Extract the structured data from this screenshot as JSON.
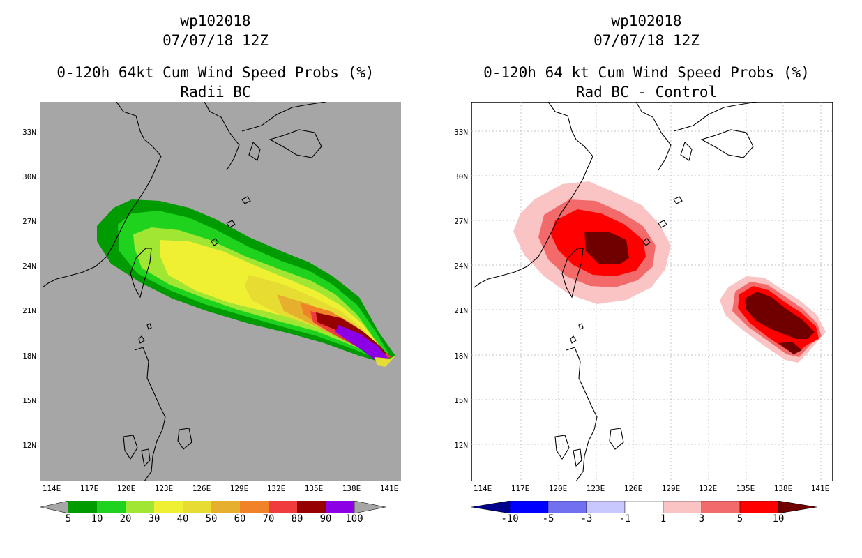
{
  "left": {
    "title_line1": "wp102018",
    "title_line2": "07/07/18 12Z",
    "title_line3": "0-120h 64kt Cum Wind Speed Probs (%)",
    "title_line4": "Radii BC",
    "background_color": "#a6a6a6",
    "colorbar": {
      "labels": [
        "5",
        "10",
        "20",
        "30",
        "40",
        "50",
        "60",
        "70",
        "80",
        "90",
        "100"
      ],
      "colors": [
        "#009b00",
        "#1ed21e",
        "#a0e632",
        "#f0f032",
        "#e6dc32",
        "#e6af2d",
        "#f08228",
        "#f03c3c",
        "#960000",
        "#8c00e6"
      ]
    }
  },
  "right": {
    "title_line1": "wp102018",
    "title_line2": "07/07/18 12Z",
    "title_line3": "0-120h 64 kt Cum Wind Speed Probs (%)",
    "title_line4": "Rad BC - Control",
    "background_color": "#ffffff",
    "colorbar": {
      "labels": [
        "-10",
        "-5",
        "-3",
        "-1",
        "1",
        "3",
        "5",
        "10"
      ],
      "colors": [
        "#00008c",
        "#0000ff",
        "#7070f0",
        "#c8c8ff",
        "#ffffff",
        "#fac4c4",
        "#f26a6a",
        "#ff0000",
        "#700000"
      ]
    }
  },
  "axes": {
    "lat_labels": [
      "33N",
      "30N",
      "27N",
      "24N",
      "21N",
      "18N",
      "15N",
      "12N"
    ],
    "lon_labels": [
      "114E",
      "117E",
      "120E",
      "123E",
      "126E",
      "129E",
      "132E",
      "135E",
      "138E",
      "141E"
    ]
  },
  "map_data": {
    "lon_range": [
      113,
      142
    ],
    "lat_range": [
      9.5,
      34.8
    ],
    "left_field_levels": [
      5,
      10,
      20,
      30,
      40,
      50,
      60,
      70,
      80,
      90,
      100
    ],
    "right_field_levels": [
      -10,
      -5,
      -3,
      -1,
      1,
      3,
      5,
      10
    ]
  }
}
